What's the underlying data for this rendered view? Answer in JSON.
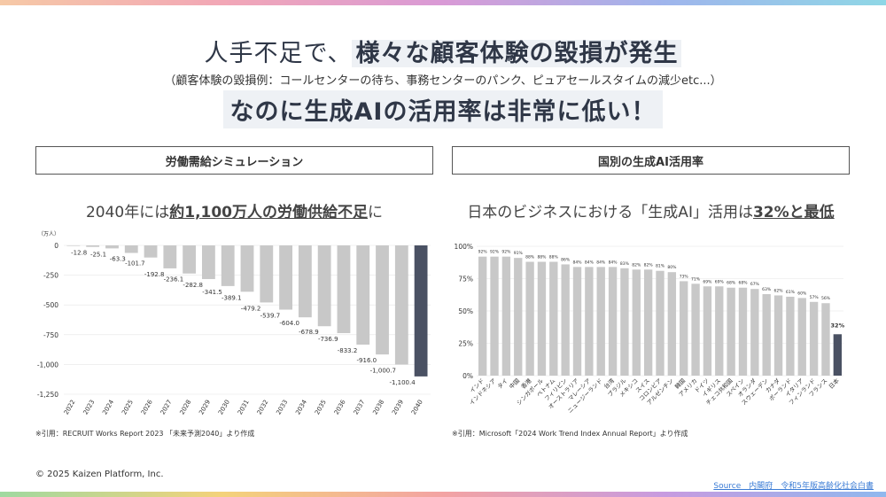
{
  "colors": {
    "bar_gray": "#c8c8c8",
    "bar_highlight": "#4a5163",
    "title": "#2f3747"
  },
  "title": {
    "line1_prefix": "人手不足で、",
    "line1_highlight": "様々な顧客体験の毀損が発生",
    "subtitle": "（顧客体験の毀損例：コールセンターの待ち、事務センターのパンク、ピュアセールスタイムの減少etc...）",
    "line2": "なのに生成AIの活用率は非常に低い！"
  },
  "left_panel": {
    "header": "労働需給シミュレーション",
    "heading_prefix": "2040年には",
    "heading_emph": "約1,100万人の労働供給不足",
    "heading_suffix": "に",
    "note": "※引用：RECRUIT Works Report 2023 「未来予測2040」より作成"
  },
  "right_panel": {
    "header": "国別の生成AI活用率",
    "heading_prefix": "日本のビジネスにおける「生成AI」活用は",
    "heading_emph": "32%と最低",
    "note": "※引用：Microsoft「2024 Work Trend Index Annual Report」より作成"
  },
  "footer": {
    "copyright": "© 2025 Kaizen Platform, Inc.",
    "source": "Source　内閣府　令和5年版高齢化社会白書"
  },
  "chart_data": [
    {
      "type": "bar",
      "unit_label": "（万人）",
      "categories": [
        "2022",
        "2023",
        "2024",
        "2025",
        "2026",
        "2027",
        "2028",
        "2029",
        "2030",
        "2031",
        "2032",
        "2033",
        "2034",
        "2035",
        "2036",
        "2037",
        "2038",
        "2039",
        "2040"
      ],
      "values": [
        0,
        -12.8,
        -25.1,
        -63.3,
        -101.7,
        -192.8,
        -236.1,
        -282.8,
        -341.5,
        -389.1,
        -479.2,
        -539.7,
        -604.0,
        -678.9,
        -736.9,
        -833.2,
        -916.0,
        -1000.7,
        -1100.4
      ],
      "data_labels": [
        "",
        "-12.8",
        "-25.1",
        "-63.3",
        "-101.7",
        "-192.8",
        "-236.1",
        "-282.8",
        "-341.5",
        "-389.1",
        "-479.2",
        "-539.7",
        "-604.0",
        "-678.9",
        "-736.9",
        "-833.2",
        "-916.0",
        "-1,000.7",
        "-1,100.4"
      ],
      "yticks": [
        0,
        -250,
        -500,
        -750,
        -1000,
        -1250
      ],
      "ytick_labels": [
        "0",
        "-250",
        "-500",
        "-750",
        "-1,000",
        "-1,250"
      ],
      "ylim": [
        -1250,
        0
      ],
      "highlight_index": 18
    },
    {
      "type": "bar",
      "categories": [
        "インド",
        "インドネシア",
        "タイ",
        "中国",
        "香港",
        "シンガポール",
        "ベトナム",
        "フィリピン",
        "オーストラリア",
        "マレーシア",
        "ニュージーランド",
        "台湾",
        "ブラジル",
        "メキシコ",
        "スイス",
        "コロンビア",
        "アルゼンチン",
        "韓国",
        "アメリカ",
        "ドイツ",
        "イギリス",
        "チェコ共和国",
        "スペイン",
        "オランダ",
        "スウェーデン",
        "カナダ",
        "ポーランド",
        "イタリア",
        "フィンランド",
        "フランス",
        "日本"
      ],
      "values": [
        92,
        92,
        92,
        91,
        88,
        88,
        88,
        86,
        84,
        84,
        84,
        84,
        83,
        82,
        82,
        81,
        80,
        73,
        71,
        69,
        69,
        68,
        68,
        67,
        63,
        62,
        61,
        60,
        57,
        56,
        32
      ],
      "data_labels": [
        "92%",
        "92%",
        "92%",
        "91%",
        "88%",
        "88%",
        "88%",
        "86%",
        "84%",
        "84%",
        "84%",
        "84%",
        "83%",
        "82%",
        "82%",
        "81%",
        "80%",
        "73%",
        "71%",
        "69%",
        "69%",
        "68%",
        "68%",
        "67%",
        "63%",
        "62%",
        "61%",
        "60%",
        "57%",
        "56%",
        "32%"
      ],
      "yticks": [
        0,
        25,
        50,
        75,
        100
      ],
      "ytick_labels": [
        "0%",
        "25%",
        "50%",
        "75%",
        "100%"
      ],
      "ylim": [
        0,
        100
      ],
      "highlight_index": 30
    }
  ]
}
